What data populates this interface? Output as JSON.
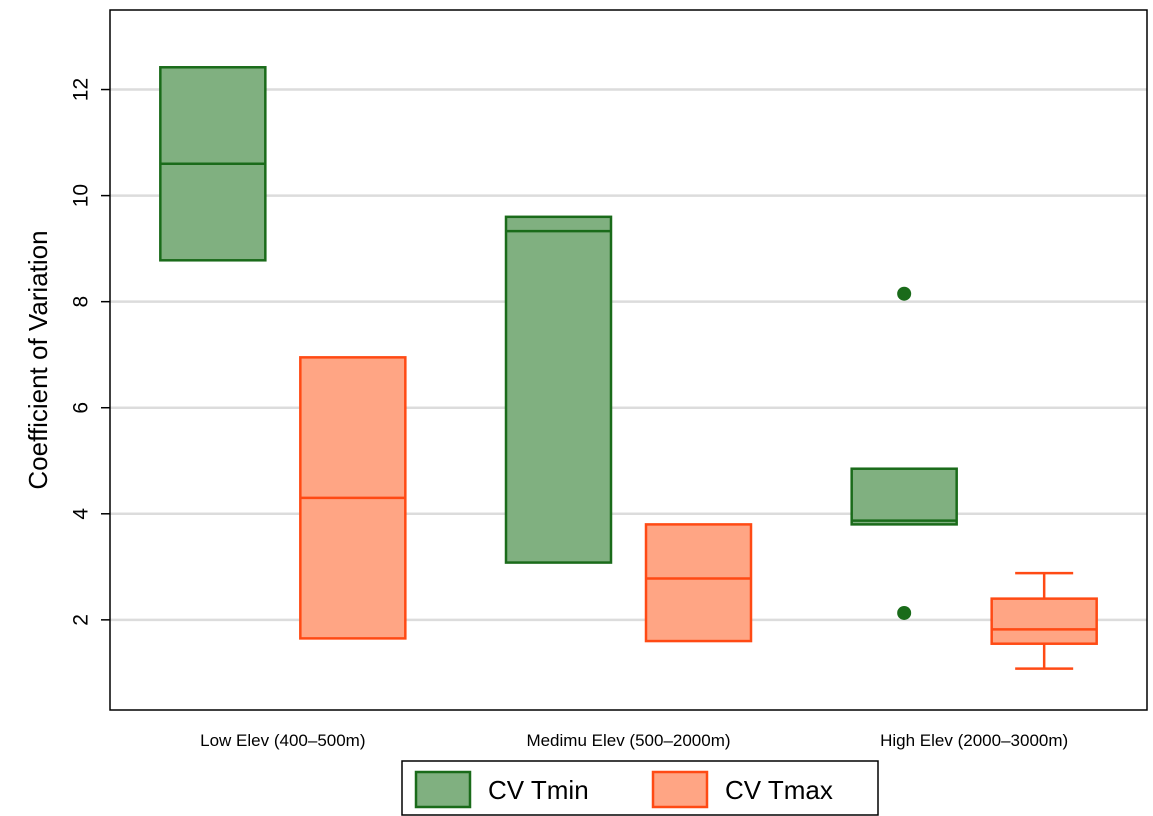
{
  "chart_data": {
    "type": "boxplot",
    "ylabel": "Coefficient of Variation",
    "xlabel": "",
    "title": "",
    "ylim": [
      0.3,
      13.5
    ],
    "yticks": [
      2,
      4,
      6,
      8,
      10,
      12
    ],
    "grid": true,
    "legend_position": "bottom",
    "categories": [
      "Low Elev (400–500m)",
      "Medimu Elev (500–2000m)",
      "High Elev (2000–3000m)"
    ],
    "series": [
      {
        "name": "CV Tmin",
        "fill": "#80b080",
        "stroke": "#1a6b1a",
        "boxes": [
          {
            "q1": 8.78,
            "median": 10.6,
            "q3": 12.42,
            "whisker_low": 8.78,
            "whisker_high": 12.42,
            "outliers": []
          },
          {
            "q1": 3.08,
            "median": 9.33,
            "q3": 9.6,
            "whisker_low": 3.08,
            "whisker_high": 9.6,
            "outliers": []
          },
          {
            "q1": 3.8,
            "median": 3.87,
            "q3": 4.85,
            "whisker_low": 3.8,
            "whisker_high": 4.85,
            "outliers": [
              8.15,
              2.13
            ]
          }
        ]
      },
      {
        "name": "CV Tmax",
        "fill": "#ffa584",
        "stroke": "#ff4a14",
        "boxes": [
          {
            "q1": 1.65,
            "median": 4.3,
            "q3": 6.95,
            "whisker_low": 1.65,
            "whisker_high": 6.95,
            "outliers": []
          },
          {
            "q1": 1.6,
            "median": 2.78,
            "q3": 3.8,
            "whisker_low": 1.6,
            "whisker_high": 3.8,
            "outliers": []
          },
          {
            "q1": 1.55,
            "median": 1.82,
            "q3": 2.4,
            "whisker_low": 1.08,
            "whisker_high": 2.88,
            "outliers": []
          }
        ]
      }
    ]
  }
}
